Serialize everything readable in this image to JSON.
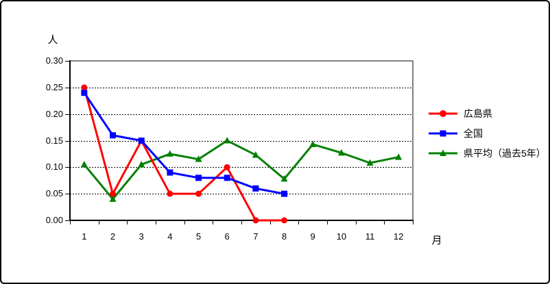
{
  "chart_data": {
    "type": "line",
    "title": "",
    "ylabel": "人",
    "xlabel": "月",
    "ylim": [
      0,
      0.3
    ],
    "y_tick_labels": [
      "0.00",
      "0.05",
      "0.10",
      "0.15",
      "0.20",
      "0.25",
      "0.30"
    ],
    "categories": [
      "1",
      "2",
      "3",
      "4",
      "5",
      "6",
      "7",
      "8",
      "9",
      "10",
      "11",
      "12"
    ],
    "grid": "horizontal-dashed",
    "legend_position": "right",
    "colors": {
      "background": "#FFFFFF",
      "plot_border": "#808080",
      "axis": "#000000",
      "grid": "#000000"
    },
    "series": [
      {
        "id": "hiroshima",
        "name": "広島県",
        "color": "#FF0000",
        "marker": "circle",
        "values": [
          0.25,
          0.05,
          0.15,
          0.05,
          0.05,
          0.1,
          0.0,
          0.0
        ]
      },
      {
        "id": "zenkoku",
        "name": "全国",
        "color": "#0000FF",
        "marker": "square",
        "values": [
          0.24,
          0.16,
          0.15,
          0.09,
          0.08,
          0.08,
          0.06,
          0.05
        ]
      },
      {
        "id": "kenheikin",
        "name": "県平均（過去5年）",
        "color": "#008000",
        "marker": "triangle",
        "values": [
          0.105,
          0.04,
          0.105,
          0.125,
          0.115,
          0.15,
          0.123,
          0.078,
          0.143,
          0.127,
          0.108,
          0.119
        ]
      }
    ]
  }
}
